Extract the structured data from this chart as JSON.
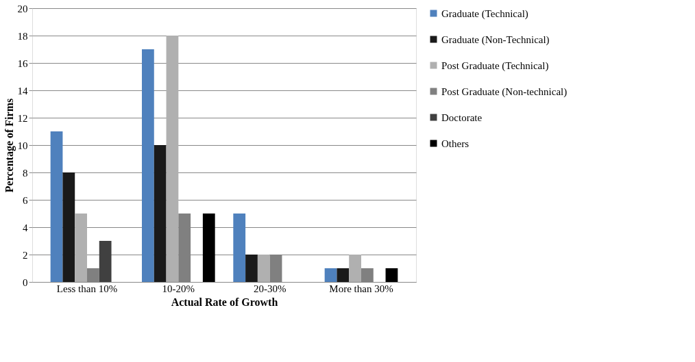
{
  "chart_data": {
    "type": "bar",
    "xlabel": "Actual Rate of Growth",
    "ylabel": "Percentage of Firms",
    "categories": [
      "Less than 10%",
      "10-20%",
      "20-30%",
      "More than 30%"
    ],
    "series": [
      {
        "name": "Graduate (Technical)",
        "color": "#4f81bd",
        "values": [
          11,
          17,
          5,
          1
        ]
      },
      {
        "name": "Graduate (Non-Technical)",
        "color": "#1a1a1a",
        "values": [
          8,
          10,
          2,
          1
        ]
      },
      {
        "name": "Post Graduate (Technical)",
        "color": "#b0b0b0",
        "values": [
          5,
          18,
          2,
          2
        ]
      },
      {
        "name": "Post Graduate (Non-technical)",
        "color": "#808080",
        "values": [
          1,
          5,
          2,
          1
        ]
      },
      {
        "name": "Doctorate",
        "color": "#404040",
        "values": [
          3,
          0,
          0,
          0
        ]
      },
      {
        "name": "Others",
        "color": "#000000",
        "values": [
          0,
          5,
          0,
          1
        ]
      }
    ],
    "ylim": [
      0,
      20
    ],
    "yticks": [
      0,
      2,
      4,
      6,
      8,
      10,
      12,
      14,
      16,
      18,
      20
    ],
    "grid": "y",
    "legend": "right"
  }
}
